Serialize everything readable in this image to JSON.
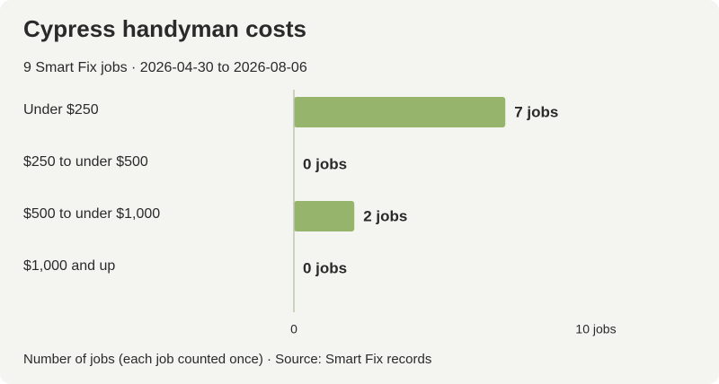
{
  "header": {
    "title": "Cypress handyman costs",
    "subtitle": "9 Smart Fix jobs · 2026-04-30 to 2026-08-06"
  },
  "footer": {
    "note": "Number of jobs (each job counted once) · Source: Smart Fix records"
  },
  "chart_data": {
    "type": "bar",
    "orientation": "horizontal",
    "title": "Cypress handyman costs",
    "subtitle": "9 Smart Fix jobs · 2026-04-30 to 2026-08-06",
    "xlabel": "Number of jobs (each job counted once)",
    "categories": [
      "Under $250",
      "$250 to under $500",
      "$500 to under $1,000",
      "$1,000 and up"
    ],
    "values": [
      7,
      0,
      2,
      0
    ],
    "value_labels": [
      "7 jobs",
      "0 jobs",
      "2 jobs",
      "0 jobs"
    ],
    "xlim": [
      0,
      10
    ],
    "x_ticks": [
      0,
      10
    ],
    "x_tick_labels": [
      "0",
      "10 jobs"
    ],
    "grid": false,
    "colors": {
      "bar": "#96b46b",
      "axis": "#bcc8ad",
      "text": "#2a2a2a",
      "background": "#f4f5f0"
    }
  }
}
